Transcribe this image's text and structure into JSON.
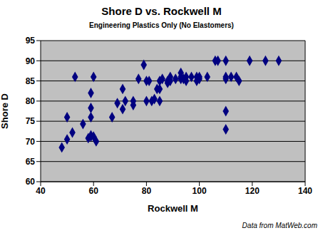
{
  "chart_data": {
    "type": "scatter",
    "title": "Shore D vs. Rockwell M",
    "subtitle": "Engineering Plastics Only (No Elastomers)",
    "x_label": "Rockwell M",
    "y_label": "Shore D",
    "annotation": "Data from MatWeb.com",
    "xlim": [
      40,
      140
    ],
    "xticks": [
      40,
      60,
      80,
      100,
      120,
      140
    ],
    "ylim": [
      60,
      95
    ],
    "yticks": [
      60,
      65,
      70,
      75,
      80,
      85,
      90,
      95
    ],
    "grid": true,
    "series": [
      {
        "name": "Shore D",
        "color": "#000080",
        "marker": "diamond",
        "x": [
          48,
          50,
          50,
          52,
          53,
          56,
          58,
          59,
          59,
          59,
          59,
          59,
          60,
          60,
          61,
          67,
          69,
          71,
          71,
          72,
          75,
          75,
          77,
          79,
          80,
          80,
          81,
          82,
          83,
          84,
          85,
          85,
          85,
          86,
          88,
          88,
          89,
          89,
          91,
          93,
          93,
          93,
          94,
          95,
          95,
          97,
          99,
          99,
          100,
          100,
          103,
          106,
          107,
          110,
          110,
          110,
          110,
          110,
          112,
          114,
          115,
          119,
          125,
          130
        ],
        "y": [
          68.5,
          70.5,
          76,
          72.2,
          86,
          74.3,
          70.8,
          71.2,
          76,
          78.3,
          82,
          71.5,
          71.2,
          86,
          70,
          76,
          79.5,
          78,
          83,
          80,
          79,
          80,
          85.5,
          89,
          85,
          80,
          85,
          80,
          80.5,
          83,
          85,
          80,
          83,
          85.5,
          84.5,
          85,
          86,
          85,
          85.5,
          85.5,
          86,
          87,
          85.5,
          85,
          86,
          86,
          85,
          86,
          85.5,
          86,
          86,
          90,
          90,
          90,
          86,
          85.5,
          77.5,
          73,
          86,
          86,
          85,
          90,
          90,
          90
        ]
      }
    ]
  }
}
